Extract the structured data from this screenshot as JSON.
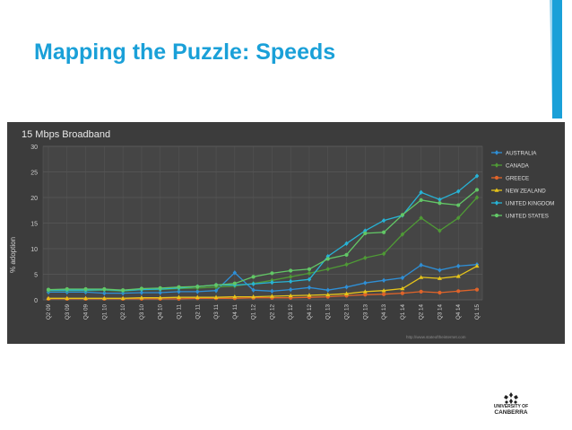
{
  "slide": {
    "title": "Mapping the Puzzle: Speeds",
    "accent_color": "#1aa0d8"
  },
  "logo": {
    "line1": "UNIVERSITY OF",
    "line2": "CANBERRA"
  },
  "chart_data": {
    "type": "line",
    "title": "15 Mbps Broadband",
    "ylabel": "% adoption",
    "xlabel": "",
    "ylim": [
      0,
      30
    ],
    "yticks": [
      0,
      5,
      10,
      15,
      20,
      25,
      30
    ],
    "grid": true,
    "legend_position": "right",
    "source": "http://www.stateoftheinternet.com",
    "categories": [
      "Q2 09",
      "Q3 09",
      "Q4 09",
      "Q1 10",
      "Q2 10",
      "Q3 10",
      "Q4 10",
      "Q1 11",
      "Q2 11",
      "Q3 11",
      "Q4 11",
      "Q1 12",
      "Q2 12",
      "Q3 12",
      "Q4 12",
      "Q1 13",
      "Q2 13",
      "Q3 13",
      "Q4 13",
      "Q1 14",
      "Q2 14",
      "Q3 14",
      "Q4 14",
      "Q1 15"
    ],
    "series": [
      {
        "name": "AUSTRALIA",
        "color": "#2f8fd6",
        "marker": "diamond",
        "values": [
          1.5,
          1.5,
          1.5,
          1.3,
          1.3,
          1.4,
          1.4,
          1.6,
          1.6,
          1.8,
          5.3,
          1.9,
          1.7,
          2.0,
          2.4,
          1.9,
          2.5,
          3.3,
          3.8,
          4.3,
          6.8,
          5.8,
          6.6,
          6.9
        ]
      },
      {
        "name": "CANADA",
        "color": "#4f9a36",
        "marker": "diamond",
        "values": [
          1.8,
          1.8,
          1.8,
          1.9,
          1.7,
          2.0,
          2.0,
          2.2,
          2.3,
          2.5,
          2.7,
          3.2,
          3.8,
          4.5,
          5.2,
          6.0,
          6.9,
          8.2,
          9.0,
          12.8,
          16.0,
          13.5,
          16.0,
          20.0
        ]
      },
      {
        "name": "GREECE",
        "color": "#e0642a",
        "marker": "circle",
        "values": [
          0.2,
          0.2,
          0.2,
          0.2,
          0.2,
          0.2,
          0.2,
          0.2,
          0.3,
          0.3,
          0.3,
          0.4,
          0.4,
          0.4,
          0.5,
          0.6,
          0.8,
          1.0,
          1.1,
          1.3,
          1.6,
          1.4,
          1.7,
          2.0
        ]
      },
      {
        "name": "NEW ZEALAND",
        "color": "#e6c41a",
        "marker": "triangle",
        "values": [
          0.3,
          0.3,
          0.3,
          0.3,
          0.3,
          0.4,
          0.4,
          0.5,
          0.5,
          0.5,
          0.6,
          0.6,
          0.7,
          0.8,
          0.9,
          1.0,
          1.2,
          1.6,
          1.8,
          2.2,
          4.4,
          4.2,
          4.6,
          6.6
        ]
      },
      {
        "name": "UNITED KINGDOM",
        "color": "#27b3d6",
        "marker": "diamond",
        "values": [
          1.9,
          1.9,
          1.9,
          2.0,
          1.8,
          2.0,
          2.1,
          2.3,
          2.6,
          2.9,
          2.9,
          3.1,
          3.4,
          3.6,
          4.0,
          8.5,
          11.0,
          13.5,
          15.5,
          16.5,
          21.0,
          19.6,
          21.2,
          24.2
        ]
      },
      {
        "name": "UNITED STATES",
        "color": "#62c766",
        "marker": "circle",
        "values": [
          2.0,
          2.1,
          2.1,
          2.1,
          1.9,
          2.2,
          2.3,
          2.5,
          2.6,
          2.9,
          3.2,
          4.5,
          5.2,
          5.7,
          6.0,
          8.0,
          8.8,
          13.0,
          13.2,
          16.6,
          19.5,
          18.9,
          18.5,
          21.5
        ]
      }
    ]
  }
}
